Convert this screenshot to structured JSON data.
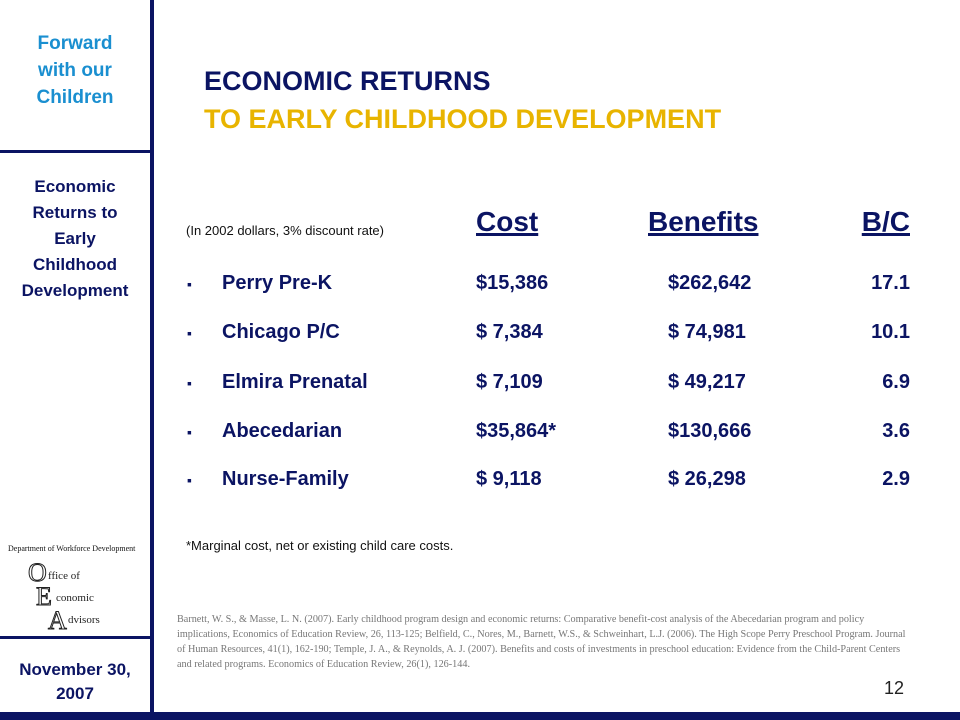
{
  "sidebar": {
    "program_lines": [
      "Forward",
      "with our",
      "Children"
    ],
    "topic_lines": [
      "Economic",
      "Returns to",
      "Early",
      "Childhood",
      "Development"
    ],
    "date_lines": [
      "November 30,",
      "2007"
    ],
    "logo": {
      "department": "Department of Workforce Development",
      "office_lines": [
        {
          "initial": "O",
          "rest": "ffice of"
        },
        {
          "initial": "E",
          "rest": "conomic"
        },
        {
          "initial": "A",
          "rest": "dvisors"
        }
      ]
    }
  },
  "title": {
    "line1": "ECONOMIC RETURNS",
    "line2": "TO EARLY CHILDHOOD DEVELOPMENT"
  },
  "table": {
    "note": "(In 2002 dollars, 3% discount rate)",
    "headers": {
      "cost": "Cost",
      "benefits": "Benefits",
      "bc": "B/C"
    },
    "bullet": "▪",
    "rows": [
      {
        "name": "Perry Pre-K",
        "cost": "$15,386",
        "benefits": "$262,642",
        "bc": "17.1"
      },
      {
        "name": "Chicago P/C",
        "cost": "$ 7,384",
        "benefits": "$ 74,981",
        "bc": "10.1"
      },
      {
        "name": "Elmira Prenatal",
        "cost": "$ 7,109",
        "benefits": "$ 49,217",
        "bc": "6.9"
      },
      {
        "name": "Abecedarian",
        "cost": "$35,864*",
        "benefits": "$130,666",
        "bc": "3.6"
      },
      {
        "name": "Nurse-Family",
        "cost": "$ 9,118",
        "benefits": "$ 26,298",
        "bc": "2.9"
      }
    ]
  },
  "footnote": "*Marginal cost, net or existing child care costs.",
  "references": "Barnett, W. S., & Masse, L. N. (2007). Early childhood program design and economic returns: Comparative benefit-cost analysis of the Abecedarian program and policy implications, Economics of Education Review, 26, 113-125; Belfield, C., Nores, M., Barnett, W.S., & Schweinhart, L.J. (2006). The High Scope Perry Preschool Program. Journal of Human Resources, 41(1), 162-190; Temple, J. A., & Reynolds, A. J. (2007). Benefits and costs of investments in preschool education: Evidence from the Child-Parent Centers and related programs. Economics of Education Review, 26(1), 126-144.",
  "page_number": "12",
  "colors": {
    "navy": "#0b1463",
    "light_blue": "#1a8fd0",
    "gold": "#e8b400"
  }
}
